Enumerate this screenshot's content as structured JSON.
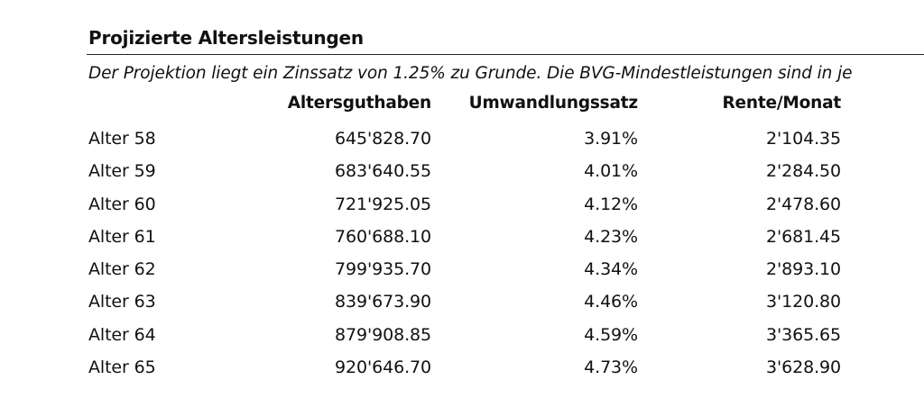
{
  "section": {
    "title": "Projizierte Altersleistungen",
    "note": "Der Projektion liegt ein Zinssatz von 1.25% zu Grunde. Die BVG-Mindestleistungen sind in je"
  },
  "table": {
    "headers": [
      "Altersguthaben",
      "Umwandlungssatz",
      "Rente/Monat"
    ],
    "rows": [
      {
        "label": "Alter 58",
        "guthaben": "645'828.70",
        "satz": "3.91%",
        "rente": "2'104.35"
      },
      {
        "label": "Alter 59",
        "guthaben": "683'640.55",
        "satz": "4.01%",
        "rente": "2'284.50"
      },
      {
        "label": "Alter 60",
        "guthaben": "721'925.05",
        "satz": "4.12%",
        "rente": "2'478.60"
      },
      {
        "label": "Alter 61",
        "guthaben": "760'688.10",
        "satz": "4.23%",
        "rente": "2'681.45"
      },
      {
        "label": "Alter 62",
        "guthaben": "799'935.70",
        "satz": "4.34%",
        "rente": "2'893.10"
      },
      {
        "label": "Alter 63",
        "guthaben": "839'673.90",
        "satz": "4.46%",
        "rente": "3'120.80"
      },
      {
        "label": "Alter 64",
        "guthaben": "879'908.85",
        "satz": "4.59%",
        "rente": "3'365.65"
      },
      {
        "label": "Alter 65",
        "guthaben": "920'646.70",
        "satz": "4.73%",
        "rente": "3'628.90"
      }
    ]
  }
}
